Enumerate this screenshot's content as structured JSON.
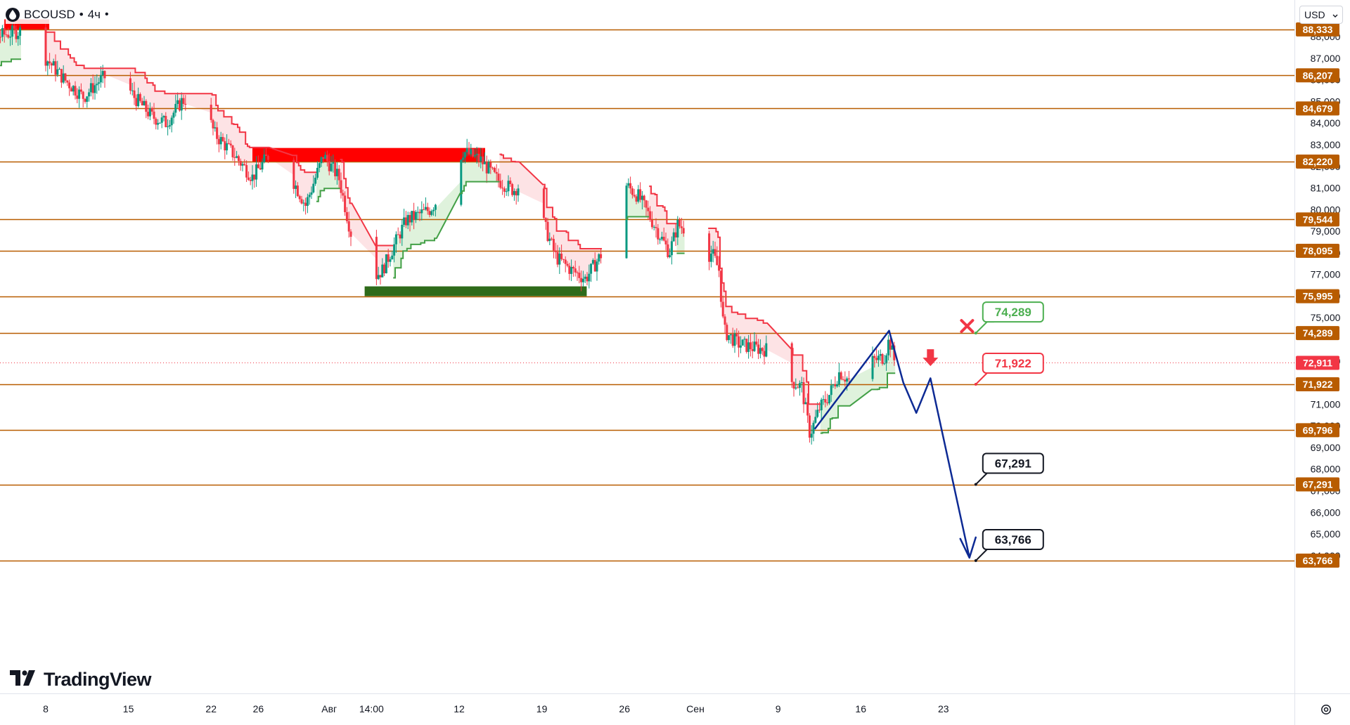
{
  "header": {
    "symbol": "BCOUSD",
    "separator": "•",
    "interval": "4ч",
    "currency": "USD"
  },
  "brand": "TradingView",
  "chart_data": {
    "type": "candlestick",
    "instrument": "BCOUSD",
    "timeframe": "4ч",
    "ylim": [
      63.55,
      89.2
    ],
    "y_ticks": [
      {
        "value": 64.0,
        "label": "64,000"
      },
      {
        "value": 65.0,
        "label": "65,000"
      },
      {
        "value": 66.0,
        "label": "66,000"
      },
      {
        "value": 67.0,
        "label": "67,000"
      },
      {
        "value": 68.0,
        "label": "68,000"
      },
      {
        "value": 69.0,
        "label": "69,000"
      },
      {
        "value": 70.0,
        "label": "70,000"
      },
      {
        "value": 71.0,
        "label": "71,000"
      },
      {
        "value": 73.0,
        "label": "73,000"
      },
      {
        "value": 75.0,
        "label": "75,000"
      },
      {
        "value": 76.0,
        "label": "76,000"
      },
      {
        "value": 77.0,
        "label": "77,000"
      },
      {
        "value": 78.0,
        "label": "78,000"
      },
      {
        "value": 79.0,
        "label": "79,000"
      },
      {
        "value": 80.0,
        "label": "80,000"
      },
      {
        "value": 81.0,
        "label": "81,000"
      },
      {
        "value": 82.0,
        "label": "82,000"
      },
      {
        "value": 83.0,
        "label": "83,000"
      },
      {
        "value": 84.0,
        "label": "84,000"
      },
      {
        "value": 85.0,
        "label": "85,000"
      },
      {
        "value": 86.0,
        "label": "86,000"
      },
      {
        "value": 87.0,
        "label": "87,000"
      },
      {
        "value": 88.0,
        "label": "88,000"
      }
    ],
    "x_ticks": [
      {
        "day": 8,
        "label": "8"
      },
      {
        "day": 15,
        "label": "15"
      },
      {
        "day": 22,
        "label": "22"
      },
      {
        "day": 26,
        "label": "26"
      },
      {
        "day": 32,
        "label": "Авг"
      },
      {
        "day": 35.58,
        "label": "14:00"
      },
      {
        "day": 43,
        "label": "12"
      },
      {
        "day": 50,
        "label": "19"
      },
      {
        "day": 57,
        "label": "26"
      },
      {
        "day": 63,
        "label": "Сен"
      },
      {
        "day": 70,
        "label": "9"
      },
      {
        "day": 77,
        "label": "16"
      },
      {
        "day": 84,
        "label": "23"
      }
    ],
    "levels": [
      {
        "value": 88.333,
        "label": "88,333"
      },
      {
        "value": 86.207,
        "label": "86,207"
      },
      {
        "value": 84.679,
        "label": "84,679"
      },
      {
        "value": 82.22,
        "label": "82,220"
      },
      {
        "value": 79.544,
        "label": "79,544"
      },
      {
        "value": 78.095,
        "label": "78,095"
      },
      {
        "value": 75.995,
        "label": "75,995"
      },
      {
        "value": 74.289,
        "label": "74,289"
      },
      {
        "value": 71.922,
        "label": "71,922"
      },
      {
        "value": 69.796,
        "label": "69,796"
      },
      {
        "value": 67.291,
        "label": "67,291"
      },
      {
        "value": 63.766,
        "label": "63,766"
      }
    ],
    "last_price": {
      "value": 72.911,
      "label": "72,911"
    },
    "callouts": [
      {
        "value": 74.289,
        "label": "74,289",
        "color": "#4caf50",
        "day": 86.5
      },
      {
        "value": 71.922,
        "label": "71,922",
        "color": "#f23645",
        "day": 86.5
      },
      {
        "value": 67.291,
        "label": "67,291",
        "color": "#131722",
        "day": 86.5
      },
      {
        "value": 63.766,
        "label": "63,766",
        "color": "#131722",
        "day": 86.5
      }
    ],
    "zones": [
      {
        "from_day": 4.5,
        "to_day": 8.3,
        "low": 88.333,
        "high": 88.8,
        "color": "#ff0000"
      },
      {
        "from_day": 25.5,
        "to_day": 45.2,
        "low": 82.22,
        "high": 82.85,
        "color": "#ff0000"
      },
      {
        "from_day": 35.0,
        "to_day": 53.8,
        "low": 75.995,
        "high": 76.45,
        "color": "#2e6b1a"
      }
    ],
    "projection": {
      "color": "#0d2a94",
      "points": [
        {
          "day": 73.1,
          "value": 69.85
        },
        {
          "day": 79.4,
          "value": 74.4
        },
        {
          "day": 80.6,
          "value": 72.0
        },
        {
          "day": 81.7,
          "value": 70.6
        },
        {
          "day": 82.9,
          "value": 72.2
        },
        {
          "day": 86.2,
          "value": 63.9
        }
      ]
    },
    "stop_marker": {
      "day": 86.0,
      "value": 74.289,
      "color": "#f23645"
    },
    "sell_arrow": {
      "day": 82.9,
      "value": 72.6,
      "color": "#f23645"
    },
    "colors": {
      "up": "#089981",
      "down": "#f23645",
      "level_line": "#b85c00",
      "stop_down": "#f23645",
      "stop_up": "#43a047",
      "fill_down": "#fde3e5",
      "fill_up": "#dff2dc"
    }
  }
}
